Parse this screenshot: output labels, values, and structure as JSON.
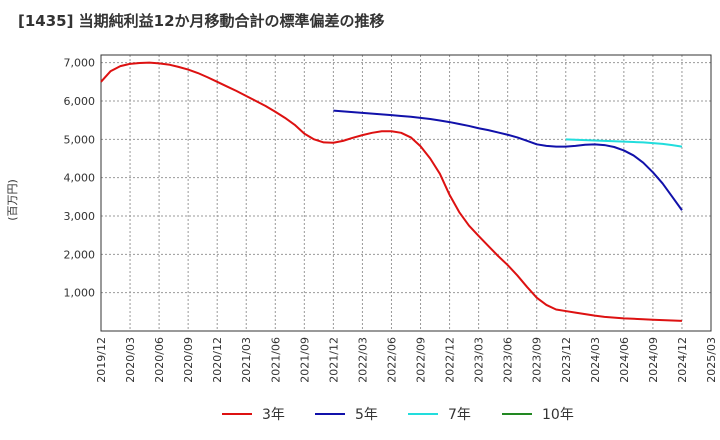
{
  "title": "[1435]  当期純利益12か月移動合計の標準偏差の推移",
  "chart_data": {
    "type": "line",
    "title": "[1435]  当期純利益12か月移動合計の標準偏差の推移",
    "ylabel": "(百万円)",
    "xlabel": "",
    "ylim": [
      0,
      7200
    ],
    "y_ticks": [
      1000,
      2000,
      3000,
      4000,
      5000,
      6000,
      7000
    ],
    "y_tick_labels": [
      "1,000",
      "2,000",
      "3,000",
      "4,000",
      "5,000",
      "6,000",
      "7,000"
    ],
    "x_ticks": [
      "2019/12",
      "2020/03",
      "2020/06",
      "2020/09",
      "2020/12",
      "2021/03",
      "2021/06",
      "2021/09",
      "2021/12",
      "2022/03",
      "2022/06",
      "2022/09",
      "2022/12",
      "2023/03",
      "2023/06",
      "2023/09",
      "2023/12",
      "2024/03",
      "2024/06",
      "2024/09",
      "2024/12",
      "2025/03"
    ],
    "grid": true,
    "legend_position": "bottom",
    "series": [
      {
        "name": "3年",
        "color": "#dd1111",
        "points": [
          [
            "2019/12",
            6500
          ],
          [
            "2020/01",
            6780
          ],
          [
            "2020/02",
            6910
          ],
          [
            "2020/03",
            6970
          ],
          [
            "2020/04",
            6990
          ],
          [
            "2020/05",
            7000
          ],
          [
            "2020/06",
            6980
          ],
          [
            "2020/07",
            6950
          ],
          [
            "2020/08",
            6890
          ],
          [
            "2020/09",
            6820
          ],
          [
            "2020/10",
            6730
          ],
          [
            "2020/11",
            6620
          ],
          [
            "2020/12",
            6500
          ],
          [
            "2021/01",
            6380
          ],
          [
            "2021/02",
            6260
          ],
          [
            "2021/03",
            6130
          ],
          [
            "2021/04",
            6000
          ],
          [
            "2021/05",
            5870
          ],
          [
            "2021/06",
            5720
          ],
          [
            "2021/07",
            5560
          ],
          [
            "2021/08",
            5380
          ],
          [
            "2021/09",
            5150
          ],
          [
            "2021/10",
            5000
          ],
          [
            "2021/11",
            4920
          ],
          [
            "2021/12",
            4910
          ],
          [
            "2022/01",
            4960
          ],
          [
            "2022/02",
            5040
          ],
          [
            "2022/03",
            5110
          ],
          [
            "2022/04",
            5170
          ],
          [
            "2022/05",
            5210
          ],
          [
            "2022/06",
            5210
          ],
          [
            "2022/07",
            5170
          ],
          [
            "2022/08",
            5050
          ],
          [
            "2022/09",
            4820
          ],
          [
            "2022/10",
            4500
          ],
          [
            "2022/11",
            4100
          ],
          [
            "2022/12",
            3550
          ],
          [
            "2023/01",
            3100
          ],
          [
            "2023/02",
            2750
          ],
          [
            "2023/03",
            2480
          ],
          [
            "2023/04",
            2220
          ],
          [
            "2023/05",
            1960
          ],
          [
            "2023/06",
            1720
          ],
          [
            "2023/07",
            1450
          ],
          [
            "2023/08",
            1150
          ],
          [
            "2023/09",
            870
          ],
          [
            "2023/10",
            680
          ],
          [
            "2023/11",
            560
          ],
          [
            "2023/12",
            520
          ],
          [
            "2024/01",
            480
          ],
          [
            "2024/02",
            440
          ],
          [
            "2024/03",
            400
          ],
          [
            "2024/04",
            370
          ],
          [
            "2024/05",
            350
          ],
          [
            "2024/06",
            330
          ],
          [
            "2024/07",
            320
          ],
          [
            "2024/08",
            305
          ],
          [
            "2024/09",
            295
          ],
          [
            "2024/10",
            285
          ],
          [
            "2024/11",
            275
          ],
          [
            "2024/12",
            265
          ]
        ]
      },
      {
        "name": "5年",
        "color": "#1111aa",
        "points": [
          [
            "2021/12",
            5750
          ],
          [
            "2022/01",
            5730
          ],
          [
            "2022/02",
            5710
          ],
          [
            "2022/03",
            5690
          ],
          [
            "2022/04",
            5670
          ],
          [
            "2022/05",
            5650
          ],
          [
            "2022/06",
            5630
          ],
          [
            "2022/07",
            5610
          ],
          [
            "2022/08",
            5590
          ],
          [
            "2022/09",
            5560
          ],
          [
            "2022/10",
            5530
          ],
          [
            "2022/11",
            5490
          ],
          [
            "2022/12",
            5450
          ],
          [
            "2023/01",
            5400
          ],
          [
            "2023/02",
            5350
          ],
          [
            "2023/03",
            5290
          ],
          [
            "2023/04",
            5240
          ],
          [
            "2023/05",
            5180
          ],
          [
            "2023/06",
            5120
          ],
          [
            "2023/07",
            5050
          ],
          [
            "2023/08",
            4960
          ],
          [
            "2023/09",
            4870
          ],
          [
            "2023/10",
            4830
          ],
          [
            "2023/11",
            4810
          ],
          [
            "2023/12",
            4810
          ],
          [
            "2024/01",
            4830
          ],
          [
            "2024/02",
            4860
          ],
          [
            "2024/03",
            4870
          ],
          [
            "2024/04",
            4850
          ],
          [
            "2024/05",
            4800
          ],
          [
            "2024/06",
            4710
          ],
          [
            "2024/07",
            4580
          ],
          [
            "2024/08",
            4390
          ],
          [
            "2024/09",
            4140
          ],
          [
            "2024/10",
            3850
          ],
          [
            "2024/11",
            3500
          ],
          [
            "2024/12",
            3150
          ]
        ]
      },
      {
        "name": "7年",
        "color": "#22dddd",
        "points": [
          [
            "2023/12",
            5000
          ],
          [
            "2024/01",
            4990
          ],
          [
            "2024/02",
            4980
          ],
          [
            "2024/03",
            4970
          ],
          [
            "2024/04",
            4960
          ],
          [
            "2024/05",
            4950
          ],
          [
            "2024/06",
            4940
          ],
          [
            "2024/07",
            4930
          ],
          [
            "2024/08",
            4920
          ],
          [
            "2024/09",
            4900
          ],
          [
            "2024/10",
            4880
          ],
          [
            "2024/11",
            4850
          ],
          [
            "2024/12",
            4810
          ]
        ]
      },
      {
        "name": "10年",
        "color": "#228822",
        "points": []
      }
    ]
  }
}
